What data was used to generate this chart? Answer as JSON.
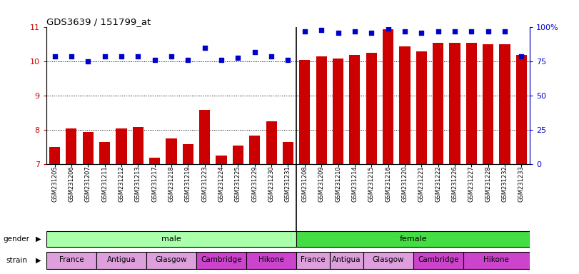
{
  "title": "GDS3639 / 151799_at",
  "samples": [
    "GSM231205",
    "GSM231206",
    "GSM231207",
    "GSM231211",
    "GSM231212",
    "GSM231213",
    "GSM231217",
    "GSM231218",
    "GSM231219",
    "GSM231223",
    "GSM231224",
    "GSM231225",
    "GSM231229",
    "GSM231230",
    "GSM231231",
    "GSM231208",
    "GSM231209",
    "GSM231210",
    "GSM231214",
    "GSM231215",
    "GSM231216",
    "GSM231220",
    "GSM231221",
    "GSM231222",
    "GSM231226",
    "GSM231227",
    "GSM231228",
    "GSM231232",
    "GSM231233"
  ],
  "bar_values": [
    7.5,
    8.05,
    7.95,
    7.65,
    8.05,
    8.1,
    7.2,
    7.75,
    7.6,
    8.6,
    7.25,
    7.55,
    7.85,
    8.25,
    7.65,
    10.05,
    10.15,
    10.1,
    10.2,
    10.25,
    10.95,
    10.45,
    10.3,
    10.55,
    10.55,
    10.55,
    10.5,
    10.5,
    10.2
  ],
  "percentile_values": [
    79,
    79,
    75,
    79,
    79,
    79,
    76,
    79,
    76,
    85,
    76,
    78,
    82,
    79,
    76,
    97,
    98,
    96,
    97,
    96,
    99,
    97,
    96,
    97,
    97,
    97,
    97,
    97,
    79
  ],
  "bar_color": "#cc0000",
  "dot_color": "#0000cc",
  "ylim_left": [
    7,
    11
  ],
  "ylim_right": [
    0,
    100
  ],
  "yticks_left": [
    7,
    8,
    9,
    10,
    11
  ],
  "yticks_right": [
    0,
    25,
    50,
    75,
    100
  ],
  "ytick_labels_right": [
    "0",
    "25",
    "50",
    "75",
    "100%"
  ],
  "bg_color": "#ffffff",
  "gender_groups": [
    {
      "label": "male",
      "start": 0,
      "end": 15,
      "color": "#aaffaa"
    },
    {
      "label": "female",
      "start": 15,
      "end": 29,
      "color": "#44dd44"
    }
  ],
  "strain_groups": [
    {
      "label": "France",
      "start": 0,
      "end": 3,
      "color": "#dda0dd"
    },
    {
      "label": "Antigua",
      "start": 3,
      "end": 6,
      "color": "#dda0dd"
    },
    {
      "label": "Glasgow",
      "start": 6,
      "end": 9,
      "color": "#dda0dd"
    },
    {
      "label": "Cambridge",
      "start": 9,
      "end": 12,
      "color": "#cc44cc"
    },
    {
      "label": "Hikone",
      "start": 12,
      "end": 15,
      "color": "#cc44cc"
    },
    {
      "label": "France",
      "start": 15,
      "end": 17,
      "color": "#dda0dd"
    },
    {
      "label": "Antigua",
      "start": 17,
      "end": 19,
      "color": "#dda0dd"
    },
    {
      "label": "Glasgow",
      "start": 19,
      "end": 22,
      "color": "#dda0dd"
    },
    {
      "label": "Cambridge",
      "start": 22,
      "end": 25,
      "color": "#cc44cc"
    },
    {
      "label": "Hikone",
      "start": 25,
      "end": 29,
      "color": "#cc44cc"
    }
  ]
}
